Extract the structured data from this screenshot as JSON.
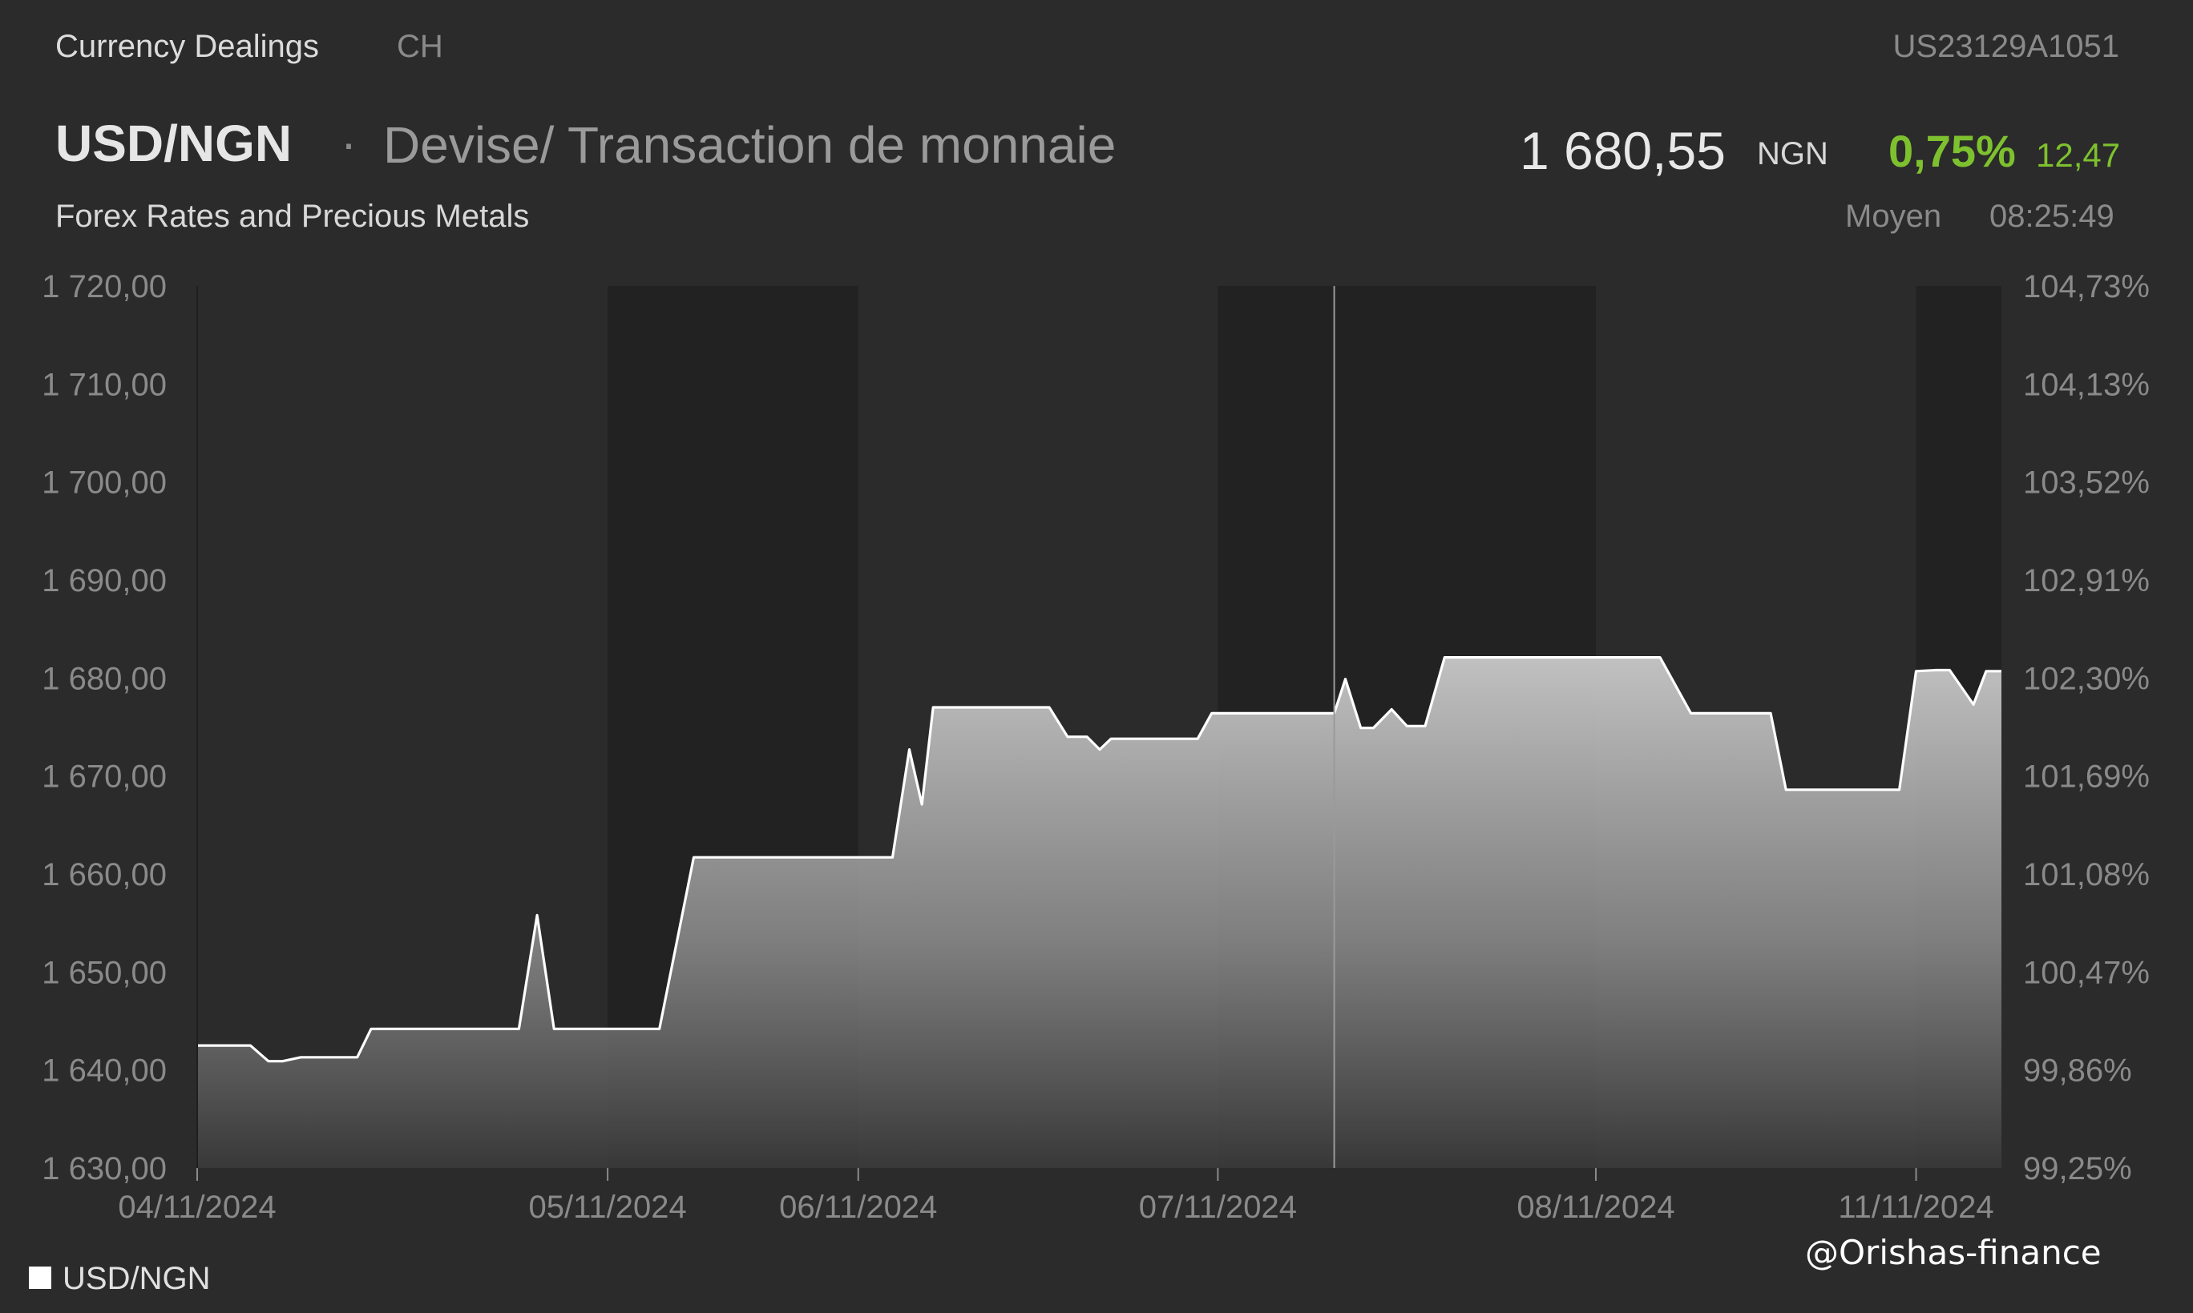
{
  "header": {
    "source": "Currency Dealings",
    "exchange": "CH",
    "isin": "US23129A1051",
    "symbol": "USD/NGN",
    "separator": "·",
    "name": "Devise/ Transaction de monnaie",
    "category": "Forex Rates and Precious Metals",
    "price": "1 680,55",
    "currency": "NGN",
    "change_pct": "0,75%",
    "change_abs": "12,47",
    "quote_type": "Moyen",
    "time": "08:25:49"
  },
  "colors": {
    "background": "#2b2b2b",
    "shade": "#222222",
    "line": "#ffffff",
    "positive": "#7ec12e",
    "axis_text": "#8a8a8a"
  },
  "watermark": "@Orishas-finance",
  "chart_data": {
    "type": "area",
    "title": "USD/NGN",
    "legend": {
      "position": "bottom-left",
      "entries": [
        "USD/NGN"
      ]
    },
    "ylim": [
      1630,
      1720
    ],
    "y_ticks": [
      "1 720,00",
      "1 710,00",
      "1 700,00",
      "1 690,00",
      "1 680,00",
      "1 670,00",
      "1 660,00",
      "1 650,00",
      "1 640,00",
      "1 630,00"
    ],
    "y2_ticks": [
      "104,73%",
      "104,13%",
      "103,52%",
      "102,91%",
      "102,30%",
      "101,69%",
      "101,08%",
      "100,47%",
      "99,86%",
      "99,25%"
    ],
    "x_ticks": [
      {
        "label": "04/11/2024",
        "t": 0.0
      },
      {
        "label": "05/11/2024",
        "t": 0.2275
      },
      {
        "label": "06/11/2024",
        "t": 0.3664
      },
      {
        "label": "07/11/2024",
        "t": 0.5657
      },
      {
        "label": "08/11/2024",
        "t": 0.7752
      },
      {
        "label": "11/11/2024",
        "t": 0.9527
      }
    ],
    "shaded_ranges": [
      [
        0.2275,
        0.3664
      ],
      [
        0.5657,
        0.7752
      ],
      [
        0.9527,
        1.0
      ]
    ],
    "crosshair_t": 0.6302,
    "series": [
      {
        "name": "USD/NGN",
        "t": [
          0.0,
          0.0295,
          0.0395,
          0.0473,
          0.0574,
          0.0887,
          0.0964,
          0.1783,
          0.1884,
          0.1978,
          0.2562,
          0.2752,
          0.2765,
          0.3854,
          0.3947,
          0.4017,
          0.4079,
          0.4296,
          0.4366,
          0.4723,
          0.4824,
          0.4932,
          0.5002,
          0.5065,
          0.5545,
          0.5623,
          0.6302,
          0.6364,
          0.6449,
          0.6519,
          0.662,
          0.6705,
          0.6806,
          0.6914,
          0.8108,
          0.8279,
          0.8721,
          0.8806,
          0.9434,
          0.9527,
          0.9635,
          0.9713,
          0.9845,
          0.9915,
          1.0
        ],
        "values": [
          1642.5,
          1642.5,
          1640.9,
          1640.9,
          1641.3,
          1641.3,
          1644.2,
          1644.2,
          1655.8,
          1644.2,
          1644.2,
          1661.7,
          1661.7,
          1661.7,
          1672.7,
          1667.1,
          1677.0,
          1677.0,
          1677.0,
          1677.0,
          1674.0,
          1674.0,
          1672.7,
          1673.8,
          1673.8,
          1676.4,
          1676.4,
          1679.9,
          1674.9,
          1674.9,
          1676.8,
          1675.1,
          1675.1,
          1682.1,
          1682.1,
          1676.4,
          1676.4,
          1668.6,
          1668.6,
          1680.7,
          1680.8,
          1680.8,
          1677.3,
          1680.7,
          1680.7
        ]
      }
    ]
  }
}
